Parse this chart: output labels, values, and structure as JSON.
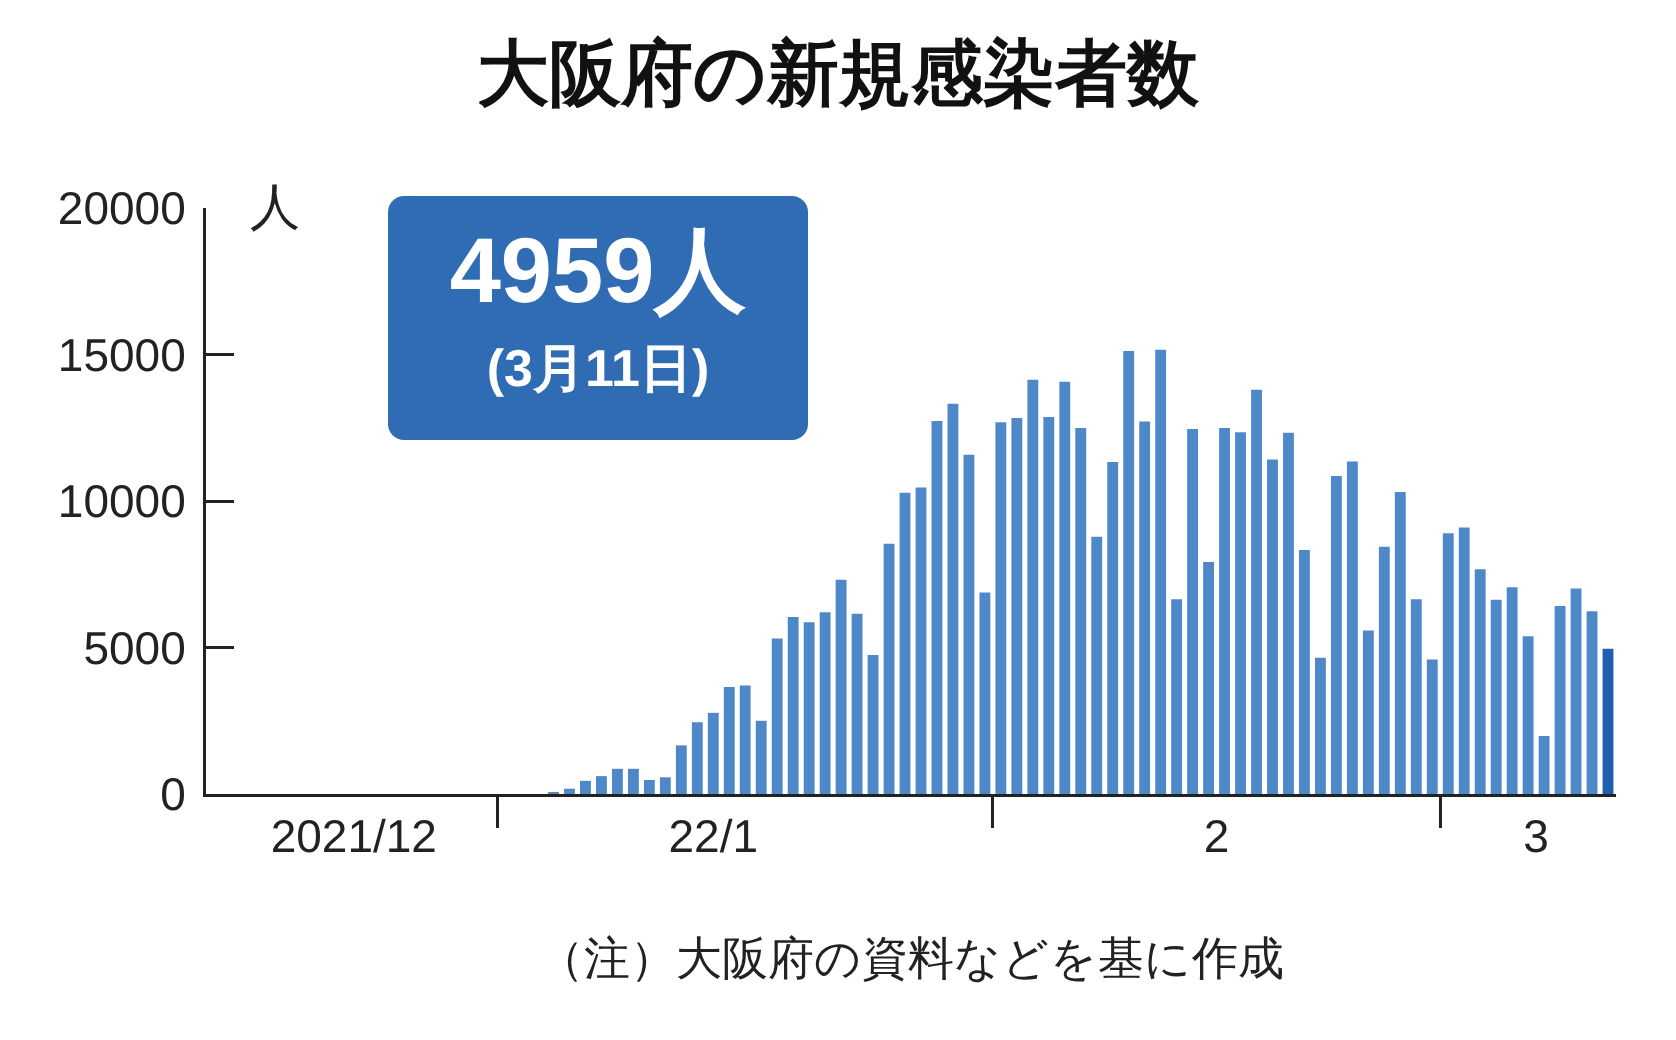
{
  "chart_data": {
    "type": "bar",
    "title": "大阪府の新規感染者数",
    "ylabel": "人",
    "x": [
      "2022-01-04",
      "2022-01-05",
      "2022-01-06",
      "2022-01-07",
      "2022-01-08",
      "2022-01-09",
      "2022-01-10",
      "2022-01-11",
      "2022-01-12",
      "2022-01-13",
      "2022-01-14",
      "2022-01-15",
      "2022-01-16",
      "2022-01-17",
      "2022-01-18",
      "2022-01-19",
      "2022-01-20",
      "2022-01-21",
      "2022-01-22",
      "2022-01-23",
      "2022-01-24",
      "2022-01-25",
      "2022-01-26",
      "2022-01-27",
      "2022-01-28",
      "2022-01-29",
      "2022-01-30",
      "2022-01-31",
      "2022-02-01",
      "2022-02-02",
      "2022-02-03",
      "2022-02-04",
      "2022-02-05",
      "2022-02-06",
      "2022-02-07",
      "2022-02-08",
      "2022-02-09",
      "2022-02-10",
      "2022-02-11",
      "2022-02-12",
      "2022-02-13",
      "2022-02-14",
      "2022-02-15",
      "2022-02-16",
      "2022-02-17",
      "2022-02-18",
      "2022-02-19",
      "2022-02-20",
      "2022-02-21",
      "2022-02-22",
      "2022-02-23",
      "2022-02-24",
      "2022-02-25",
      "2022-02-26",
      "2022-02-27",
      "2022-02-28",
      "2022-03-01",
      "2022-03-02",
      "2022-03-03",
      "2022-03-04",
      "2022-03-05",
      "2022-03-06",
      "2022-03-07",
      "2022-03-08",
      "2022-03-09",
      "2022-03-10",
      "2022-03-11"
    ],
    "values": [
      70,
      180,
      450,
      610,
      860,
      860,
      480,
      570,
      1660,
      2450,
      2770,
      3650,
      3700,
      2500,
      5310,
      6040,
      5860,
      6200,
      7310,
      6150,
      4740,
      8540,
      10280,
      10460,
      12730,
      13320,
      11580,
      6880,
      12690,
      12830,
      14140,
      12870,
      14070,
      12490,
      8780,
      11330,
      15120,
      12710,
      15160,
      6650,
      12460,
      7920,
      12490,
      12350,
      13800,
      11420,
      12330,
      8330,
      4650,
      10850,
      11350,
      5580,
      8440,
      10310,
      6650,
      4590,
      8900,
      9100,
      7670,
      6630,
      7060,
      5380,
      1980,
      6420,
      7010,
      6240,
      4959
    ],
    "colors": [
      "#4f88c9",
      "#4f88c9",
      "#4f88c9",
      "#4f88c9",
      "#4f88c9",
      "#4f88c9",
      "#4f88c9",
      "#4f88c9",
      "#4f88c9",
      "#4f88c9",
      "#4f88c9",
      "#4f88c9",
      "#4f88c9",
      "#4f88c9",
      "#4f88c9",
      "#4f88c9",
      "#4f88c9",
      "#4f88c9",
      "#4f88c9",
      "#4f88c9",
      "#4f88c9",
      "#4f88c9",
      "#4f88c9",
      "#4f88c9",
      "#4f88c9",
      "#4f88c9",
      "#4f88c9",
      "#4f88c9",
      "#4f88c9",
      "#4f88c9",
      "#4f88c9",
      "#4f88c9",
      "#4f88c9",
      "#4f88c9",
      "#4f88c9",
      "#4f88c9",
      "#4f88c9",
      "#4f88c9",
      "#4f88c9",
      "#4f88c9",
      "#4f88c9",
      "#4f88c9",
      "#4f88c9",
      "#4f88c9",
      "#4f88c9",
      "#4f88c9",
      "#4f88c9",
      "#4f88c9",
      "#4f88c9",
      "#4f88c9",
      "#4f88c9",
      "#4f88c9",
      "#4f88c9",
      "#4f88c9",
      "#4f88c9",
      "#4f88c9",
      "#4f88c9",
      "#4f88c9",
      "#4f88c9",
      "#4f88c9",
      "#4f88c9",
      "#4f88c9",
      "#4f88c9",
      "#4f88c9",
      "#4f88c9",
      "#4f88c9",
      "#1f5fae"
    ],
    "xlim": [
      "2021-12-13T06:00",
      "2022-03-11T12:00"
    ],
    "xticks": [
      {
        "value": "2021-12-31T12:00",
        "label": null
      },
      {
        "value": "2022-01-31T12:00",
        "label": null
      },
      {
        "value": "2022-02-28T12:00",
        "label": null
      },
      {
        "value": "2021-12-22T12:00",
        "label": "2021/12"
      },
      {
        "value": "2022-01-14",
        "label": "22/1"
      },
      {
        "value": "2022-02-14T12:00",
        "label": "2"
      },
      {
        "value": "2022-03-06T12:00",
        "label": "3"
      }
    ],
    "ylim": [
      0,
      20000
    ],
    "yticks": [
      0,
      5000,
      10000,
      15000,
      20000
    ],
    "annotations": [
      "4959人",
      "(3月11日)",
      "（注）大阪府の資料などを基に作成"
    ]
  }
}
